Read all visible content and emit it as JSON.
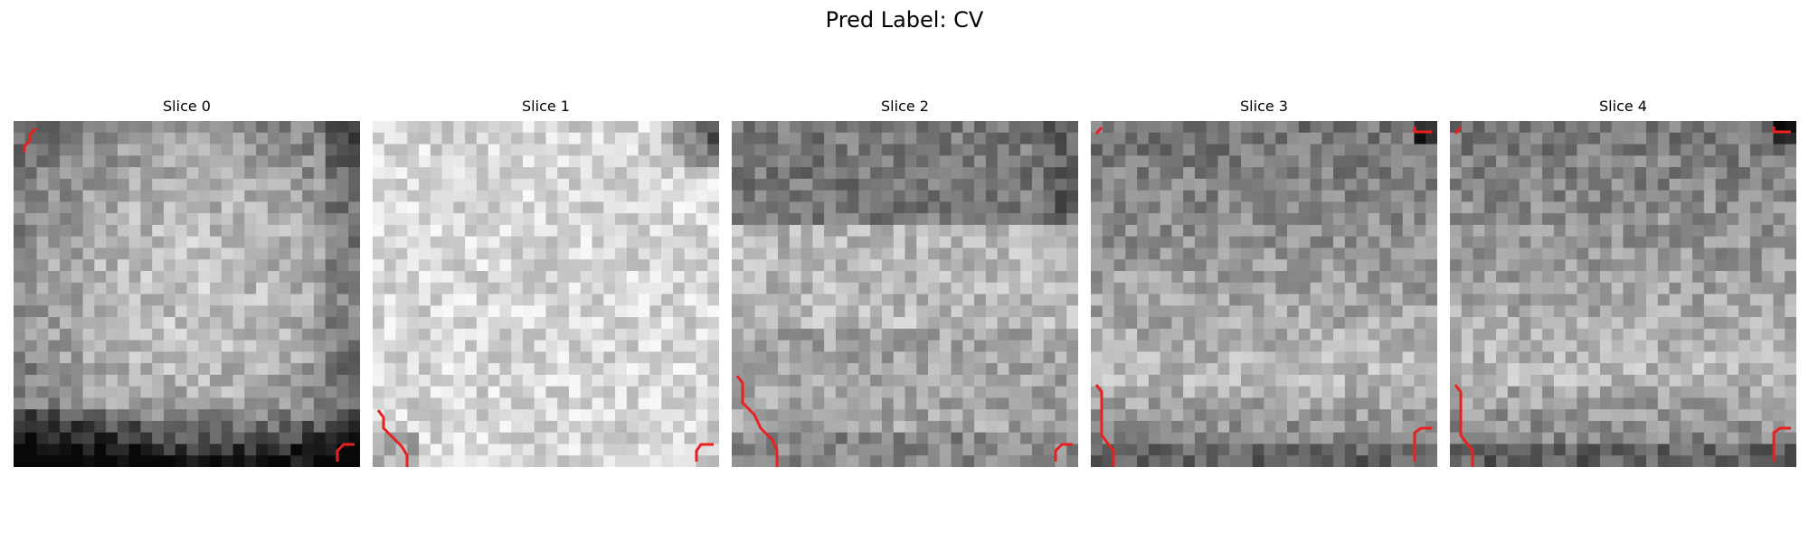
{
  "figure": {
    "title": "Pred Label: CV"
  },
  "colors": {
    "background": "#ffffff",
    "contour": "#e8201f",
    "colormap": "gray"
  },
  "slices": [
    {
      "title": "Slice 0",
      "brightness_profile": "bright center, darker bottom rows and lower-left corner",
      "contour_regions": [
        "top-left corner",
        "bottom-right corner"
      ]
    },
    {
      "title": "Slice 1",
      "brightness_profile": "mostly very bright, dark top-right corner",
      "contour_regions": [
        "bottom-left corner",
        "bottom-right corner"
      ]
    },
    {
      "title": "Slice 2",
      "brightness_profile": "darker top band, bright middle band, darker lower rows",
      "contour_regions": [
        "lower-left edge",
        "bottom-right corner"
      ]
    },
    {
      "title": "Slice 3",
      "brightness_profile": "dark upper third, lighter lower area, dark top-right corner",
      "contour_regions": [
        "top-left corner",
        "top-right corner",
        "lower-left edge",
        "bottom-right corner"
      ]
    },
    {
      "title": "Slice 4",
      "brightness_profile": "dark upper third, lighter lower area, dark top-right corner",
      "contour_regions": [
        "top-left corner",
        "top-right corner",
        "lower-left edge",
        "bottom-right corner"
      ]
    }
  ]
}
